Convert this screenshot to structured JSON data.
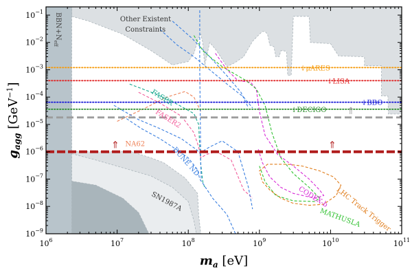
{
  "chart_data": {
    "type": "line",
    "xscale": "log",
    "yscale": "log",
    "xlim": [
      1000000,
      100000000000
    ],
    "ylim": [
      1e-09,
      0.2
    ],
    "xlabel": {
      "symbol": "m",
      "subscript": "a",
      "unit": " [eV]"
    },
    "ylabel": {
      "symbol": "g",
      "subscript": "agg",
      "unit": " [GeV",
      "unit_sup": "−1",
      "unit_end": "]"
    },
    "x_ticks": [
      {
        "value": 1000000,
        "base": "10",
        "exp": "6"
      },
      {
        "value": 10000000,
        "base": "10",
        "exp": "7"
      },
      {
        "value": 100000000,
        "base": "10",
        "exp": "8"
      },
      {
        "value": 1000000000,
        "base": "10",
        "exp": "9"
      },
      {
        "value": 10000000000,
        "base": "10",
        "exp": "10"
      },
      {
        "value": 100000000000,
        "base": "10",
        "exp": "11"
      }
    ],
    "y_ticks": [
      {
        "value": 1e-09,
        "base": "10",
        "exp": "−9"
      },
      {
        "value": 1e-08,
        "base": "10",
        "exp": "−8"
      },
      {
        "value": 1e-07,
        "base": "10",
        "exp": "−7"
      },
      {
        "value": 1e-06,
        "base": "10",
        "exp": "−6"
      },
      {
        "value": 1e-05,
        "base": "10",
        "exp": "−5"
      },
      {
        "value": 0.0001,
        "base": "10",
        "exp": "−4"
      },
      {
        "value": 0.001,
        "base": "10",
        "exp": "−3"
      },
      {
        "value": 0.01,
        "base": "10",
        "exp": "−2"
      },
      {
        "value": 0.1,
        "base": "10",
        "exp": "−1"
      }
    ],
    "colors": {
      "constraint_fill": "#dce0e3",
      "constraint_edge": "#a3aeb3",
      "sn_fill": "#eaedef",
      "bbn_fill": "#b8c4cb",
      "dark_fill": "#a9b5bb",
      "fill_edge": "#aab4ba",
      "thick_line": "#b01c1c",
      "bare_line": "#f59b0e",
      "lisa_line": "#e02525",
      "bbo_line": "#1c1fd8",
      "decigo_line": "#2b8c2b",
      "gray_line": "#9c9c9c"
    },
    "shaded_regions": [
      {
        "name": "Other Existent Constraints",
        "color": "#dce0e3",
        "points": [
          [
            2300000.0,
            0.2
          ],
          [
            100000000000.0,
            0.2
          ],
          [
            100000000000.0,
            2.4e-05
          ],
          [
            65000000000.0,
            2.4e-05
          ],
          [
            64000000000.0,
            0.00011
          ],
          [
            52000000000.0,
            0.00011
          ],
          [
            52000000000.0,
            0.0014
          ],
          [
            30000000000.0,
            0.0014
          ],
          [
            30000000000.0,
            0.003
          ],
          [
            13000000000.0,
            0.0032
          ],
          [
            10000000000.0,
            0.009
          ],
          [
            5200000000.0,
            0.01
          ],
          [
            5000000000.0,
            0.09
          ],
          [
            3000000000.0,
            0.09
          ],
          [
            2800000000.0,
            0.00063
          ],
          [
            2500000000.0,
            0.00063
          ],
          [
            2400000000.0,
            0.0048
          ],
          [
            2000000000.0,
            0.005
          ],
          [
            1900000000.0,
            0.003
          ],
          [
            1700000000.0,
            0.003
          ],
          [
            1600000000.0,
            0.007
          ],
          [
            1400000000.0,
            0.008
          ],
          [
            1300000000.0,
            0.02
          ],
          [
            1200000000.0,
            0.025
          ],
          [
            1100000000.0,
            0.025
          ],
          [
            1000000000.0,
            0.02
          ],
          [
            800000000.0,
            0.011
          ],
          [
            600000000.0,
            0.003
          ],
          [
            450000000.0,
            0.0018
          ],
          [
            350000000.0,
            0.0013
          ],
          [
            250000000.0,
            0.005
          ],
          [
            200000000.0,
            0.01
          ],
          [
            170000000.0,
            0.0014
          ],
          [
            160000000.0,
            0.01
          ],
          [
            150000000.0,
            0.02
          ],
          [
            140000000.0,
            0.015
          ],
          [
            120000000.0,
            0.004
          ],
          [
            100000000.0,
            0.002
          ],
          [
            60000000.0,
            0.0015
          ],
          [
            30000000.0,
            0.005
          ],
          [
            12000000.0,
            0.02
          ],
          [
            4000000.0,
            0.06
          ],
          [
            2300000.0,
            0.09
          ]
        ]
      },
      {
        "name": "Lower Constraints",
        "color": "#dce0e3",
        "points": [
          [
            50000000.0,
            1e-09
          ],
          [
            30000000.0,
            1.5e-08
          ],
          [
            11000000.0,
            6e-08
          ],
          [
            10000000.0,
            4e-08
          ],
          [
            5000000.0,
            5e-08
          ],
          [
            1000000.0,
            1e-09
          ],
          [
            1000000.0,
            1e-06
          ],
          [
            16000000.0,
            1e-06
          ],
          [
            30000000.0,
            6e-07
          ],
          [
            45000000.0,
            4e-07
          ],
          [
            90000000.0,
            1.1e-07
          ],
          [
            135000000.0,
            3e-08
          ],
          [
            140000000.0,
            5e-09
          ],
          [
            150000000.0,
            1e-09
          ]
        ]
      },
      {
        "name": "SN1987A",
        "color": "#eaedef",
        "points": [
          [
            1000000.0,
            1e-09
          ],
          [
            1000000.0,
            1.5e-06
          ],
          [
            5000000.0,
            5e-07
          ],
          [
            12000000.0,
            2.6e-07
          ],
          [
            30000000.0,
            1.3e-07
          ],
          [
            60000000.0,
            5e-08
          ],
          [
            100000000.0,
            1.5e-08
          ],
          [
            120000000.0,
            3e-09
          ],
          [
            130000000.0,
            1e-09
          ]
        ]
      },
      {
        "name": "Dark corner",
        "color": "#a9b5bb",
        "points": [
          [
            1000000.0,
            1e-09
          ],
          [
            1000000.0,
            1.2e-07
          ],
          [
            5000000.0,
            6e-08
          ],
          [
            12000000.0,
            2e-08
          ],
          [
            20000000.0,
            6e-09
          ],
          [
            28000000.0,
            1e-09
          ]
        ]
      },
      {
        "name": "BBN+Neff",
        "color": "#b8c4cb",
        "points": [
          [
            1000000.0,
            0.2
          ],
          [
            2300000.0,
            0.2
          ],
          [
            2300000.0,
            1e-09
          ],
          [
            1000000.0,
            1e-09
          ]
        ]
      },
      {
        "name": "White notch",
        "color": "#ffffff",
        "points": [
          [
            1700000000.0,
            4e-05
          ],
          [
            1700000000.0,
            8e-05
          ],
          [
            1900000000.0,
            8e-05
          ],
          [
            1900000000.0,
            4e-05
          ]
        ]
      }
    ],
    "horizontal_lines": [
      {
        "name": "μARES",
        "y": 0.0012,
        "color": "#f59b0e",
        "style": "dotted",
        "label": "μARES",
        "arrow": "↓"
      },
      {
        "name": "LISA",
        "y": 0.0004,
        "color": "#e02525",
        "style": "dotted",
        "label": "LISA",
        "arrow": "↓"
      },
      {
        "name": "BBO",
        "y": 6.5e-05,
        "color": "#1c1fd8",
        "style": "dotted",
        "label": "BBO",
        "arrow": "↓"
      },
      {
        "name": "DECIGO",
        "y": 3.6e-05,
        "color": "#2b8c2b",
        "style": "dotted",
        "label": "DECIGO",
        "arrow": "↓"
      },
      {
        "name": "gray bound",
        "y": 1.8e-05,
        "color": "#9c9c9c",
        "style": "dashed",
        "label": "",
        "arrow": "⇑"
      },
      {
        "name": "red bound",
        "y": 1e-06,
        "color": "#b01c1c",
        "style": "dashed-thick",
        "label": "",
        "arrow": "⇑"
      }
    ],
    "series": [
      {
        "name": "NA62",
        "color": "#ee8257",
        "points": [
          [
            10000000.0,
            1.3e-05
          ],
          [
            25000000.0,
            4e-05
          ],
          [
            50000000.0,
            0.0001
          ],
          [
            90000000.0,
            0.00016
          ],
          [
            120000000.0,
            0.0001
          ],
          [
            150000000.0,
            3e-05
          ]
        ]
      },
      {
        "name": "FASER",
        "color": "#17a88f",
        "points": [
          [
            15000000.0,
            0.0003
          ],
          [
            35000000.0,
            0.00013
          ],
          [
            70000000.0,
            5.5e-05
          ],
          [
            120000000.0,
            2.5e-05
          ],
          [
            140000000.0,
            1e-05
          ],
          [
            145000000.0,
            1.5e-06
          ],
          [
            150000000.0,
            3.5e-07
          ],
          [
            160000000.0,
            8e-08
          ],
          [
            170000000.0,
            5e-08
          ]
        ]
      },
      {
        "name": "FASER2",
        "color": "#f25c9a",
        "points": [
          [
            20000000.0,
            0.00015
          ],
          [
            40000000.0,
            6e-05
          ],
          [
            80000000.0,
            2e-05
          ],
          [
            120000000.0,
            5e-06
          ],
          [
            140000000.0,
            1.5e-06
          ],
          [
            150000000.0,
            6e-07
          ],
          [
            180000000.0,
            8e-07
          ],
          [
            250000000.0,
            1e-06
          ],
          [
            400000000.0,
            5e-07
          ],
          [
            600000000.0,
            4e-08
          ],
          [
            800000000.0,
            2e-08
          ]
        ]
      },
      {
        "name": "DUNE ND",
        "color": "#3a7fe0",
        "points": [
          [
            12000000.0,
            2e-05
          ],
          [
            22000000.0,
            7e-06
          ],
          [
            40000000.0,
            3e-06
          ],
          [
            60000000.0,
            1.5e-06
          ],
          [
            100000000.0,
            6e-07
          ],
          [
            135000000.0,
            2.2e-07
          ],
          [
            145000000.0,
            1e-07
          ],
          [
            160000000.0,
            7e-08
          ],
          [
            220000000.0,
            2e-08
          ],
          [
            350000000.0,
            5e-09
          ],
          [
            460000000.0,
            1e-09
          ]
        ]
      },
      {
        "name": "DUNE upper",
        "color": "#3a7fe0",
        "points": [
          [
            9000000.0,
            5e-05
          ],
          [
            20000000.0,
            1.5e-05
          ],
          [
            40000000.0,
            7e-06
          ],
          [
            80000000.0,
            3e-06
          ],
          [
            130000000.0,
            1.2e-06
          ],
          [
            145000000.0,
            9e-07
          ],
          [
            200000000.0,
            1.5e-06
          ],
          [
            300000000.0,
            2.5e-06
          ],
          [
            500000000.0,
            1e-06
          ],
          [
            700000000.0,
            5e-08
          ],
          [
            800000000.0,
            8e-09
          ]
        ]
      },
      {
        "name": "DUNE vertical",
        "color": "#3a7fe0",
        "points": [
          [
            145000000.0,
            0.15
          ],
          [
            145000000.0,
            0.001
          ],
          [
            148000000.0,
            1e-05
          ],
          [
            150000000.0,
            3e-07
          ],
          [
            152000000.0,
            1e-07
          ]
        ]
      },
      {
        "name": "Blue diagonal",
        "color": "#3a7fe0",
        "points": [
          [
            40000000.0,
            0.03
          ],
          [
            70000000.0,
            0.008
          ],
          [
            120000000.0,
            0.003
          ],
          [
            200000000.0,
            0.001
          ],
          [
            350000000.0,
            0.0003
          ],
          [
            600000000.0,
            0.0001
          ],
          [
            800000000.0,
            4e-05
          ]
        ]
      },
      {
        "name": "Blue diagonal 2",
        "color": "#3a7fe0",
        "points": [
          [
            60000000.0,
            0.06
          ],
          [
            110000000.0,
            0.015
          ],
          [
            200000000.0,
            0.003
          ],
          [
            350000000.0,
            0.0006
          ],
          [
            550000000.0,
            0.00015
          ],
          [
            700000000.0,
            4e-05
          ]
        ]
      },
      {
        "name": "CODEX-b",
        "color": "#d629d6",
        "points": [
          [
            240000000.0,
            0.004
          ],
          [
            350000000.0,
            0.001
          ],
          [
            500000000.0,
            0.0004
          ],
          [
            750000000.0,
            0.00035
          ],
          [
            900000000.0,
            0.0002
          ],
          [
            1000000000.0,
            3e-05
          ],
          [
            1200000000.0,
            4e-06
          ],
          [
            1800000000.0,
            8e-07
          ],
          [
            3000000000.0,
            3e-07
          ],
          [
            5000000000.0,
            1e-07
          ],
          [
            7000000000.0,
            4e-08
          ],
          [
            8000000000.0,
            2.5e-08
          ],
          [
            6000000000.0,
            2e-08
          ],
          [
            3000000000.0,
            3e-08
          ],
          [
            2000000000.0,
            5e-08
          ],
          [
            1400000000.0,
            1.2e-07
          ],
          [
            1100000000.0,
            4e-07
          ],
          [
            950000000.0,
            1.4e-06
          ]
        ]
      },
      {
        "name": "MATHUSLA",
        "color": "#31c131",
        "points": [
          [
            120000000.0,
            0.018
          ],
          [
            160000000.0,
            0.005
          ],
          [
            200000000.0,
            0.003
          ],
          [
            300000000.0,
            0.0013
          ],
          [
            450000000.0,
            0.0007
          ],
          [
            650000000.0,
            0.0004
          ],
          [
            900000000.0,
            0.0002
          ],
          [
            1200000000.0,
            5e-05
          ],
          [
            1500000000.0,
            5e-06
          ],
          [
            2000000000.0,
            6e-07
          ],
          [
            3000000000.0,
            1.6e-07
          ],
          [
            5000000000.0,
            5e-08
          ],
          [
            7000000000.0,
            2e-08
          ],
          [
            6000000000.0,
            1.5e-08
          ],
          [
            3000000000.0,
            1.6e-08
          ],
          [
            1700000000.0,
            2.5e-08
          ],
          [
            1200000000.0,
            8e-08
          ],
          [
            1000000000.0,
            3e-07
          ]
        ]
      },
      {
        "name": "LHC Track Trigger",
        "color": "#e07c1a",
        "points": [
          [
            2500000000.0,
            3.5e-07
          ],
          [
            4000000000.0,
            3e-07
          ],
          [
            7000000000.0,
            2e-07
          ],
          [
            11000000000.0,
            1.2e-07
          ],
          [
            14000000000.0,
            6e-08
          ],
          [
            12000000000.0,
            2.5e-08
          ],
          [
            8000000000.0,
            1.2e-08
          ],
          [
            5000000000.0,
            1.1e-08
          ],
          [
            3000000000.0,
            1.3e-08
          ],
          [
            2000000000.0,
            2e-08
          ],
          [
            1400000000.0,
            4e-08
          ],
          [
            1100000000.0,
            8e-08
          ],
          [
            1000000000.0,
            2e-07
          ],
          [
            1300000000.0,
            3.5e-07
          ],
          [
            2500000000.0,
            3.5e-07
          ]
        ]
      }
    ],
    "annotations": [
      {
        "text": "Other Existent",
        "x": 11000000.0,
        "y": 0.06,
        "color": "#333333"
      },
      {
        "text": "Constraints",
        "x": 13000000.0,
        "y": 0.025,
        "color": "#333333"
      },
      {
        "text": "SN1987A",
        "x": 30000000.0,
        "y": 2.5e-08,
        "color": "#333333",
        "rotate": 28
      },
      {
        "text": "NA62",
        "x": 13000000.0,
        "y": 1.6e-06,
        "color": "#ee8257"
      },
      {
        "text": "FASER",
        "x": 30000000.0,
        "y": 0.00014,
        "color": "#17a88f",
        "rotate": 32
      },
      {
        "text": "FASER2",
        "x": 34000000.0,
        "y": 2.6e-05,
        "color": "#f25c9a",
        "rotate": 32
      },
      {
        "text": "DUNE ND",
        "x": 60000000.0,
        "y": 1.2e-06,
        "color": "#3a7fe0",
        "rotate": 48
      },
      {
        "text": "LHC Track Trigger",
        "x": 12000000000.0,
        "y": 3.8e-08,
        "color": "#e07c1a",
        "rotate": 38
      },
      {
        "text": "CODEX-b",
        "x": 3500000000.0,
        "y": 4e-08,
        "color": "#d629d6",
        "rotate": 32
      },
      {
        "text": "MATHUSLA",
        "x": 7000000000.0,
        "y": 6e-09,
        "color": "#31c131",
        "rotate": 20
      }
    ],
    "bbn_label": {
      "main": "BBN+N",
      "sub": "eff"
    }
  }
}
